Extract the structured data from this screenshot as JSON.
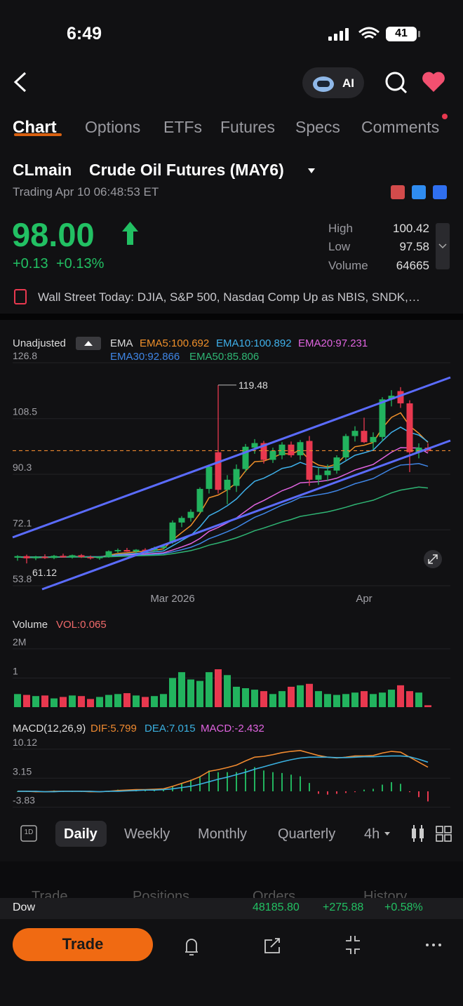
{
  "status": {
    "time": "6:49",
    "battery": "41"
  },
  "nav": {
    "ai": "AI"
  },
  "tabs": [
    "Chart",
    "Options",
    "ETFs",
    "Futures",
    "Specs",
    "Comments"
  ],
  "quote": {
    "symbol": "CLmain",
    "name": "Crude Oil Futures (MAY6)",
    "session": "Trading Apr 10 06:48:53 ET",
    "price": "98.00",
    "change": "+0.13",
    "change_pct": "+0.13%",
    "stats": [
      {
        "label": "High",
        "value": "100.42"
      },
      {
        "label": "Low",
        "value": "97.58"
      },
      {
        "label": "Volume",
        "value": "64665"
      }
    ]
  },
  "news": "Wall Street Today: DJIA, S&P 500, Nasdaq Comp Up as NBIS, SNDK,…",
  "chart_controls": {
    "mode": "Unadjusted",
    "indicator": "EMA"
  },
  "chart_data": [
    {
      "type": "candlestick",
      "categories": [
        null,
        null,
        null,
        null,
        null,
        null,
        null,
        null,
        null,
        null,
        null,
        null,
        null,
        null,
        null,
        null,
        null,
        "Mar 2026",
        null,
        null,
        null,
        null,
        null,
        null,
        null,
        null,
        null,
        null,
        null,
        null,
        null,
        null,
        null,
        null,
        null,
        null,
        null,
        null,
        "Apr",
        null,
        null,
        null,
        null,
        null,
        null,
        null
      ],
      "open": [
        63.0,
        63.5,
        62.8,
        63.3,
        62.9,
        63.6,
        63.1,
        63.8,
        63.2,
        62.8,
        63.2,
        65.1,
        65.5,
        65.0,
        65.6,
        65.3,
        66.2,
        68.0,
        74.5,
        76.0,
        78.0,
        85.5,
        97.5,
        85.2,
        86.5,
        92.0,
        99.0,
        100.5,
        95.0,
        96.5,
        100.0,
        96.5,
        101.2,
        88.5,
        90.0,
        91.5,
        95.8,
        102.8,
        104.5,
        100.8,
        102.5,
        114.8,
        117.5,
        113.5,
        97.5,
        99.0
      ],
      "high": [
        63.8,
        64.0,
        63.6,
        64.1,
        63.9,
        64.3,
        64.0,
        64.2,
        63.7,
        63.5,
        65.4,
        66.0,
        66.2,
        65.8,
        66.1,
        66.6,
        67.0,
        75.2,
        76.6,
        78.8,
        86.0,
        93.5,
        119.48,
        90.0,
        93.5,
        100.2,
        101.8,
        101.2,
        99.0,
        100.8,
        101.0,
        101.5,
        102.8,
        92.5,
        93.5,
        96.5,
        103.5,
        106.0,
        108.8,
        104.0,
        115.5,
        117.8,
        118.8,
        114.5,
        100.4,
        100.42
      ],
      "low": [
        62.0,
        61.12,
        62.2,
        62.6,
        62.5,
        63.0,
        62.7,
        62.9,
        62.4,
        62.3,
        63.0,
        64.6,
        64.9,
        64.5,
        65.0,
        64.9,
        65.6,
        67.5,
        73.0,
        74.8,
        77.5,
        84.0,
        84.0,
        80.5,
        84.5,
        91.0,
        97.0,
        93.8,
        94.0,
        95.2,
        95.8,
        95.0,
        86.5,
        86.8,
        88.0,
        90.5,
        94.8,
        101.0,
        100.5,
        98.5,
        101.0,
        112.5,
        112.0,
        91.0,
        95.5,
        97.58
      ],
      "close": [
        63.5,
        62.8,
        63.3,
        62.9,
        63.6,
        63.1,
        63.8,
        63.2,
        62.8,
        63.2,
        65.1,
        65.5,
        65.0,
        65.6,
        65.3,
        66.2,
        66.8,
        74.5,
        76.0,
        78.0,
        85.5,
        92.8,
        85.2,
        88.5,
        92.0,
        99.3,
        100.5,
        95.0,
        98.0,
        100.0,
        96.5,
        100.8,
        88.5,
        90.0,
        91.5,
        95.8,
        102.8,
        104.5,
        100.8,
        102.5,
        114.8,
        116.0,
        113.5,
        97.5,
        99.0,
        98.0
      ],
      "up_color": "#22b35e",
      "down_color": "#e8384f",
      "last_color": "#f08a30",
      "ylim": [
        53.8,
        126.8
      ],
      "yticks": [
        126.8,
        108.5,
        90.3,
        72.1,
        53.8
      ],
      "grid": true,
      "series": [
        {
          "name": "EMA5:100.692",
          "color": "#f0902a",
          "values": [
            63.2,
            63.0,
            63.1,
            63.0,
            63.2,
            63.2,
            63.4,
            63.3,
            63.1,
            63.2,
            63.8,
            64.4,
            64.6,
            64.9,
            65.1,
            65.4,
            65.9,
            68.8,
            71.2,
            73.5,
            77.5,
            82.6,
            83.5,
            85.2,
            87.5,
            91.4,
            94.4,
            94.6,
            95.7,
            97.1,
            96.9,
            98.2,
            95.0,
            93.3,
            92.7,
            93.7,
            96.7,
            99.3,
            99.8,
            100.7,
            105.4,
            108.9,
            110.4,
            106.1,
            103.7,
            100.7
          ]
        },
        {
          "name": "EMA10:100.892",
          "color": "#3fb0ea",
          "values": [
            63.2,
            63.1,
            63.1,
            63.1,
            63.2,
            63.2,
            63.3,
            63.3,
            63.2,
            63.2,
            63.6,
            64.0,
            64.2,
            64.4,
            64.6,
            64.9,
            65.2,
            66.9,
            68.6,
            70.3,
            73.1,
            76.7,
            78.2,
            80.0,
            82.2,
            85.3,
            88.0,
            89.0,
            90.5,
            92.2,
            92.8,
            94.2,
            93.1,
            92.5,
            92.3,
            92.9,
            94.7,
            96.5,
            97.3,
            98.2,
            101.2,
            104.0,
            105.7,
            104.0,
            103.1,
            100.9
          ]
        },
        {
          "name": "EMA20:97.231",
          "color": "#e064e0",
          "values": [
            63.2,
            63.2,
            63.2,
            63.2,
            63.2,
            63.2,
            63.3,
            63.3,
            63.3,
            63.3,
            63.5,
            63.7,
            63.9,
            64.1,
            64.2,
            64.4,
            64.6,
            65.5,
            66.5,
            67.6,
            69.3,
            71.6,
            72.9,
            74.4,
            76.0,
            78.2,
            80.3,
            81.7,
            83.3,
            84.9,
            86.0,
            87.5,
            87.7,
            87.9,
            88.3,
            89.0,
            90.3,
            91.7,
            92.6,
            93.5,
            95.5,
            97.5,
            99.0,
            98.9,
            98.9,
            97.2
          ]
        },
        {
          "name": "EMA30:92.866",
          "color": "#3f86e6",
          "values": [
            63.2,
            63.2,
            63.2,
            63.2,
            63.2,
            63.2,
            63.2,
            63.3,
            63.3,
            63.3,
            63.4,
            63.6,
            63.7,
            63.8,
            63.9,
            64.1,
            64.3,
            64.9,
            65.6,
            66.4,
            67.6,
            69.2,
            70.3,
            71.5,
            72.8,
            74.5,
            76.2,
            77.4,
            78.8,
            80.2,
            81.3,
            82.7,
            83.1,
            83.6,
            84.1,
            84.9,
            86.0,
            87.2,
            88.0,
            88.9,
            90.5,
            92.1,
            93.3,
            93.5,
            93.8,
            92.9
          ]
        },
        {
          "name": "EMA50:85.806",
          "color": "#2fb574",
          "values": [
            63.2,
            63.2,
            63.2,
            63.2,
            63.2,
            63.2,
            63.2,
            63.2,
            63.2,
            63.2,
            63.3,
            63.4,
            63.5,
            63.6,
            63.7,
            63.8,
            63.9,
            64.3,
            64.8,
            65.3,
            66.1,
            67.1,
            67.8,
            68.6,
            69.5,
            70.6,
            71.8,
            72.7,
            73.7,
            74.7,
            75.5,
            76.5,
            77.0,
            77.5,
            78.0,
            78.7,
            79.5,
            80.4,
            81.1,
            81.8,
            83.0,
            84.2,
            85.1,
            85.6,
            86.1,
            85.8
          ]
        }
      ]
    },
    {
      "type": "bar",
      "title": "Volume",
      "legend": "VOL:0.065",
      "legend_color": "#f06a6a",
      "values": [
        0.45,
        0.42,
        0.38,
        0.4,
        0.3,
        0.35,
        0.4,
        0.38,
        0.28,
        0.35,
        0.42,
        0.45,
        0.48,
        0.4,
        0.35,
        0.38,
        0.45,
        1.0,
        1.2,
        0.95,
        0.9,
        1.2,
        1.3,
        1.1,
        0.7,
        0.65,
        0.6,
        0.55,
        0.45,
        0.55,
        0.7,
        0.75,
        0.8,
        0.55,
        0.45,
        0.42,
        0.45,
        0.5,
        0.55,
        0.45,
        0.5,
        0.6,
        0.75,
        0.55,
        0.5,
        0.065
      ],
      "up_color": "#22b35e",
      "down_color": "#e8384f",
      "ylim": [
        0,
        2.6
      ],
      "yticks": [
        {
          "value": 2,
          "label": "2M"
        },
        1
      ],
      "grid": true
    },
    {
      "type": "macd",
      "title": "MACD(12,26,9)",
      "up_color": "#22b35e",
      "down_color": "#e8384f",
      "ylim": [
        -5.4,
        12.3
      ],
      "yticks": [
        10.12,
        3.15,
        -3.83
      ],
      "grid": true,
      "series": [
        {
          "name": "DIF:5.799",
          "color": "#f08a30",
          "values": [
            0,
            0,
            -0.1,
            -0.1,
            0,
            0,
            0,
            0,
            -0.1,
            -0.1,
            0,
            0.2,
            0.3,
            0.4,
            0.4,
            0.5,
            0.6,
            1.2,
            1.9,
            2.6,
            3.5,
            4.8,
            5.2,
            5.7,
            6.3,
            7.3,
            8.2,
            8.4,
            8.8,
            9.3,
            9.6,
            9.8,
            9.2,
            8.6,
            8.2,
            8.0,
            8.2,
            8.5,
            8.5,
            8.6,
            9.2,
            9.6,
            9.4,
            8.2,
            7.0,
            5.8
          ]
        },
        {
          "name": "DEA:7.015",
          "color": "#3ab0e0",
          "values": [
            0,
            0,
            0,
            -0.1,
            -0.1,
            0,
            0,
            0,
            0,
            -0.1,
            0,
            0,
            0.1,
            0.2,
            0.3,
            0.3,
            0.4,
            0.6,
            0.9,
            1.2,
            1.7,
            2.3,
            2.9,
            3.4,
            4.0,
            4.6,
            5.3,
            5.9,
            6.5,
            7.1,
            7.6,
            8.0,
            8.2,
            8.2,
            8.2,
            8.1,
            8.1,
            8.2,
            8.3,
            8.3,
            8.4,
            8.5,
            8.5,
            8.3,
            7.7,
            7.0
          ]
        },
        {
          "name": "MACD:-2.432",
          "color": "#e064e0",
          "bars": true,
          "values": [
            0,
            0,
            -0.2,
            0,
            0.2,
            0,
            0,
            0,
            -0.2,
            0,
            0,
            0.4,
            0.4,
            0.4,
            0.2,
            0.4,
            0.4,
            1.2,
            2.0,
            2.8,
            3.6,
            5.0,
            4.6,
            4.6,
            4.6,
            5.4,
            5.8,
            5.0,
            4.6,
            4.4,
            4.0,
            3.6,
            2.0,
            -0.6,
            -0.8,
            -0.6,
            -0.4,
            -0.2,
            0.4,
            0.6,
            1.6,
            2.2,
            1.8,
            -0.2,
            -1.4,
            -2.43
          ]
        }
      ]
    }
  ],
  "periods": [
    "1D",
    "Daily",
    "Weekly",
    "Monthly",
    "Quarterly",
    "4h"
  ],
  "hidden_tabs": [
    "Trade",
    "Positions",
    "Orders",
    "History"
  ],
  "ticker": {
    "name": "Dow",
    "value": "48185.80",
    "change": "+275.88",
    "change_pct": "+0.58%"
  },
  "action": "Trade"
}
